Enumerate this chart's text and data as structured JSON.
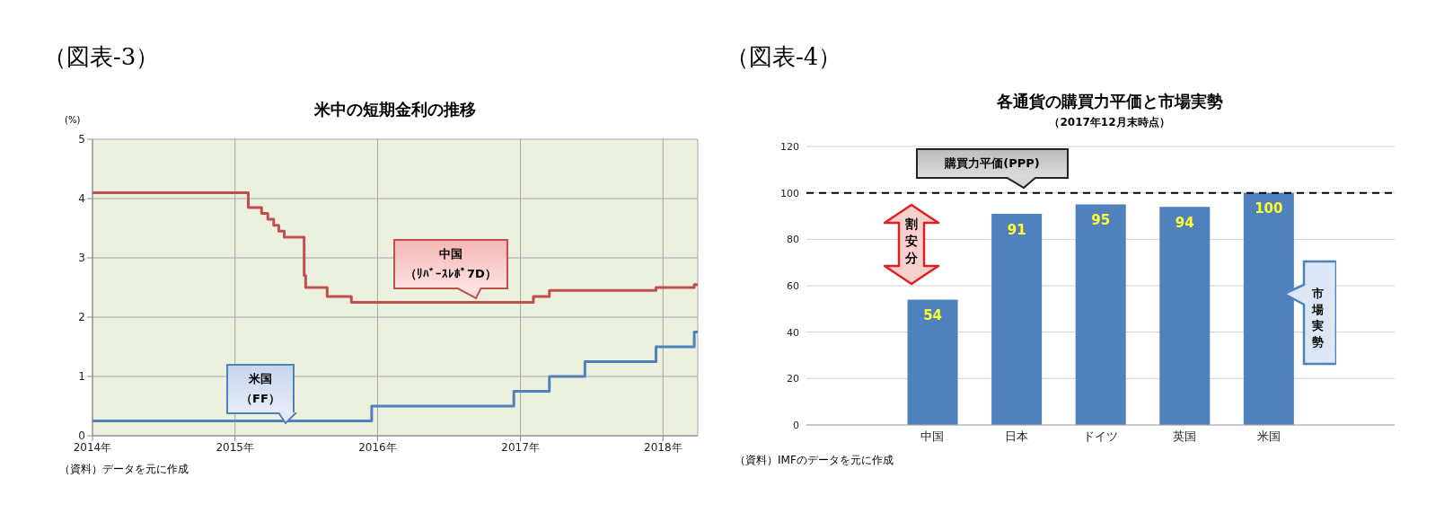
{
  "chart_data": [
    {
      "type": "step",
      "title": "米中の短期金利の推移",
      "ylabel": "(%)",
      "annotations": [
        "（図表-3）",
        "（資料）データを元に作成"
      ],
      "xlim": [
        "2014-01-01",
        "2018-03-31"
      ],
      "xticks": [
        {
          "value": "2014-01-01",
          "label": "2014年"
        },
        {
          "value": "2015-01-01",
          "label": "2015年"
        },
        {
          "value": "2016-01-01",
          "label": "2016年"
        },
        {
          "value": "2017-01-01",
          "label": "2017年"
        },
        {
          "value": "2018-01-01",
          "label": "2018年"
        }
      ],
      "ylim": [
        0,
        5
      ],
      "yticks": [
        0,
        1,
        2,
        3,
        4,
        5
      ],
      "grid": true,
      "series": [
        {
          "name": "中国（ﾘﾊﾞｰｽﾚﾎﾟ7D）",
          "color": "#c0504d",
          "x": [
            "2014-01-01",
            "2015-02-04",
            "2015-03-10",
            "2015-03-26",
            "2015-04-10",
            "2015-04-23",
            "2015-05-07",
            "2015-06-27",
            "2015-07-01",
            "2015-08-25",
            "2015-10-26",
            "2017-02-03",
            "2017-03-16",
            "2017-12-14",
            "2018-03-22",
            "2018-03-31"
          ],
          "values": [
            4.1,
            3.85,
            3.75,
            3.65,
            3.55,
            3.45,
            3.35,
            2.7,
            2.5,
            2.35,
            2.25,
            2.35,
            2.45,
            2.5,
            2.55,
            2.55
          ]
        },
        {
          "name": "米国（FF）",
          "color": "#4f81bd",
          "x": [
            "2014-01-01",
            "2015-12-17",
            "2016-12-15",
            "2017-03-16",
            "2017-06-15",
            "2017-12-14",
            "2018-03-22",
            "2018-03-31"
          ],
          "values": [
            0.25,
            0.5,
            0.75,
            1.0,
            1.25,
            1.5,
            1.75,
            1.75
          ]
        }
      ]
    },
    {
      "type": "bar",
      "title": "各通貨の購買力平価と市場実勢",
      "subtitle": "（2017年12月末時点）",
      "annotations": [
        "（図表-4）",
        "割安分",
        "市場実勢",
        "（資料）IMFのデータを元に作成"
      ],
      "categories": [
        null,
        "中国",
        "日本",
        "ドイツ",
        "英国",
        "米国",
        null
      ],
      "values": [
        null,
        54,
        91,
        95,
        94,
        100,
        null
      ],
      "color": "#4f81bd",
      "data_labels": true,
      "ylim": [
        0,
        120
      ],
      "yticks": [
        0,
        20,
        40,
        60,
        80,
        100,
        120
      ],
      "grid": "y",
      "ref_lines": [
        {
          "axis": "y",
          "value": 100,
          "label": "購買力平価(PPP)",
          "color": "#000000",
          "line_style": "dashed"
        }
      ]
    }
  ]
}
